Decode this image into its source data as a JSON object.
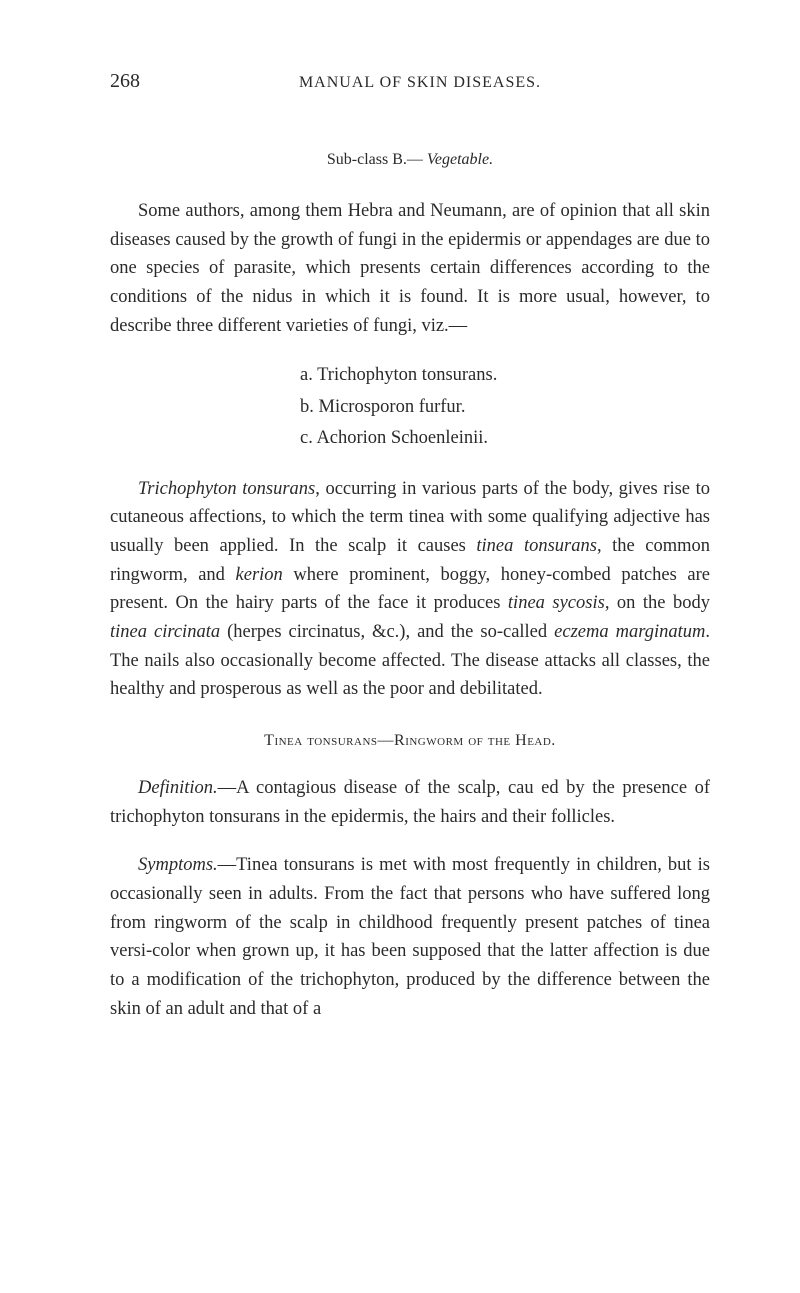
{
  "header": {
    "page_number": "268",
    "running_title": "MANUAL OF SKIN DISEASES."
  },
  "subclass": {
    "label": "Sub-class B.— ",
    "italic": "Vegetable."
  },
  "para1": "Some authors, among them Hebra and Neumann, are of opinion that all skin diseases caused by the growth of fungi in the epidermis or appendages are due to one species of parasite, which presents certain differences according to the conditions of the nidus in which it is found. It is more usual, however, to describe three different varieties of fungi, viz.—",
  "list": {
    "a": "a. Trichophyton tonsurans.",
    "b": "b. Microsporon furfur.",
    "c": "c. Achorion Schoenleinii."
  },
  "para2_pre": "Trichophyton tonsurans",
  "para2_mid": ", occurring in various parts of the body, gives rise to cutaneous affections, to which the term tinea with some qualifying adjective has usually been applied. In the scalp it causes ",
  "para2_i1": "tinea tonsurans",
  "para2_mid2": ", the common ringworm, and ",
  "para2_i2": "kerion",
  "para2_mid3": " where prominent, boggy, honey-combed patches are present. On the hairy parts of the face it produces ",
  "para2_i3": "tinea sycosis",
  "para2_mid4": ", on the body ",
  "para2_i4": "tinea circinata",
  "para2_mid5": " (herpes circinatus, &c.), and the so-called ",
  "para2_i5": "eczema marginatum",
  "para2_end": ". The nails also occasionally become affected. The disease attacks all classes, the healthy and prosperous as well as the poor and debilitated.",
  "section_heading": "Tinea tonsurans—Ringworm of the Head.",
  "para3_i": "Definition.",
  "para3": "—A contagious disease of the scalp, cau ed by the presence of trichophyton tonsurans in the epidermis, the hairs and their follicles.",
  "para4_i": "Symptoms.",
  "para4": "—Tinea tonsurans is met with most frequently in children, but is occasionally seen in adults. From the fact that persons who have suffered long from ringworm of the scalp in childhood frequently present patches of tinea versi-color when grown up, it has been supposed that the latter affection is due to a modification of the trichophyton, produced by the difference between the skin of an adult and that of a"
}
